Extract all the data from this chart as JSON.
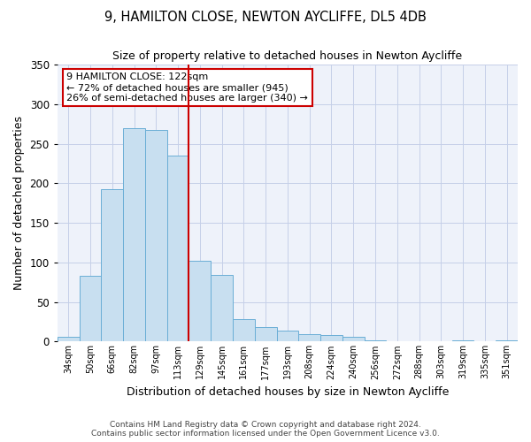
{
  "title": "9, HAMILTON CLOSE, NEWTON AYCLIFFE, DL5 4DB",
  "subtitle": "Size of property relative to detached houses in Newton Aycliffe",
  "xlabel": "Distribution of detached houses by size in Newton Aycliffe",
  "ylabel": "Number of detached properties",
  "bar_labels": [
    "34sqm",
    "50sqm",
    "66sqm",
    "82sqm",
    "97sqm",
    "113sqm",
    "129sqm",
    "145sqm",
    "161sqm",
    "177sqm",
    "193sqm",
    "208sqm",
    "224sqm",
    "240sqm",
    "256sqm",
    "272sqm",
    "288sqm",
    "303sqm",
    "319sqm",
    "335sqm",
    "351sqm"
  ],
  "bar_values": [
    6,
    83,
    193,
    270,
    267,
    235,
    102,
    84,
    28,
    18,
    14,
    9,
    8,
    6,
    2,
    0,
    0,
    0,
    2,
    0,
    2
  ],
  "bar_color": "#c8dff0",
  "bar_edgecolor": "#6aaed6",
  "ylim": [
    0,
    350
  ],
  "yticks": [
    0,
    50,
    100,
    150,
    200,
    250,
    300,
    350
  ],
  "vline_x": 5.5,
  "vline_color": "#cc0000",
  "annotation_title": "9 HAMILTON CLOSE: 122sqm",
  "annotation_line1": "← 72% of detached houses are smaller (945)",
  "annotation_line2": "26% of semi-detached houses are larger (340) →",
  "annotation_box_color": "#cc0000",
  "background_color": "#eef2fa",
  "grid_color": "#c5cfe8",
  "footer_line1": "Contains HM Land Registry data © Crown copyright and database right 2024.",
  "footer_line2": "Contains public sector information licensed under the Open Government Licence v3.0."
}
